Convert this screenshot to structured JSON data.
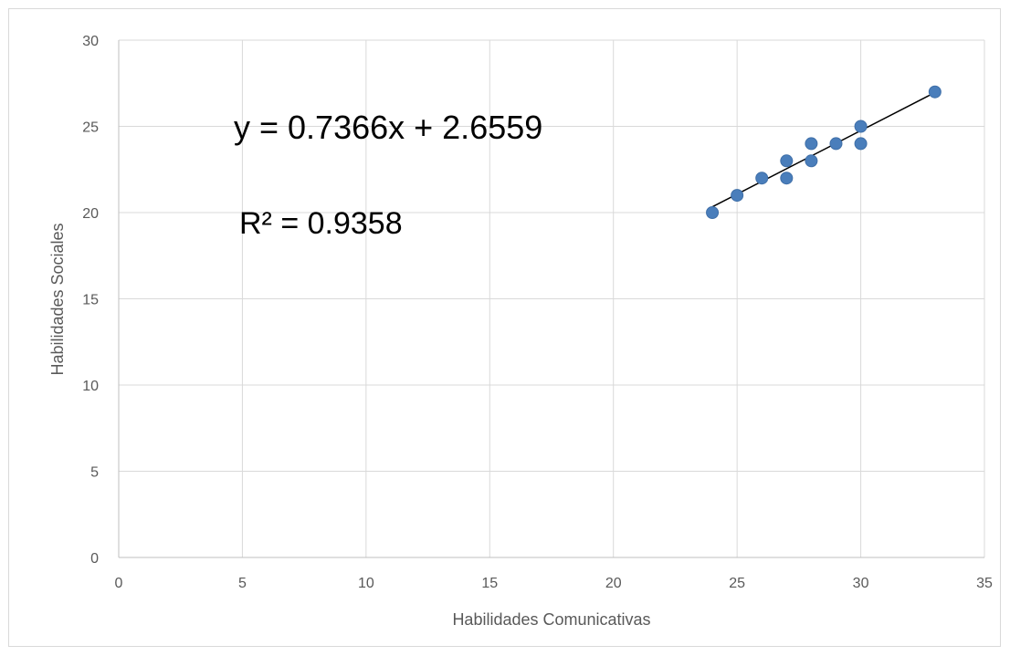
{
  "chart_data": {
    "type": "scatter",
    "title": "",
    "xlabel": "Habilidades Comunicativas",
    "ylabel": "Habilidades Sociales",
    "xlim": [
      0,
      35
    ],
    "ylim": [
      0,
      30
    ],
    "x_ticks": [
      0,
      5,
      10,
      15,
      20,
      25,
      30,
      35
    ],
    "y_ticks": [
      0,
      5,
      10,
      15,
      20,
      25,
      30
    ],
    "grid": true,
    "legend": "none",
    "series": [
      {
        "color": "#4a7ebb",
        "points": [
          {
            "x": 24,
            "y": 20
          },
          {
            "x": 25,
            "y": 21
          },
          {
            "x": 26,
            "y": 22
          },
          {
            "x": 27,
            "y": 22
          },
          {
            "x": 27,
            "y": 23
          },
          {
            "x": 28,
            "y": 23
          },
          {
            "x": 28,
            "y": 24
          },
          {
            "x": 29,
            "y": 24
          },
          {
            "x": 30,
            "y": 24
          },
          {
            "x": 30,
            "y": 25
          },
          {
            "x": 33,
            "y": 27
          }
        ]
      }
    ],
    "trendline": {
      "type": "linear",
      "slope": 0.7366,
      "intercept": 2.6559,
      "x_range": [
        24,
        33
      ],
      "color": "#000000"
    },
    "annotations": {
      "equation": "y = 0.7366x + 2.6559",
      "r_squared": "R² = 0.9358"
    }
  }
}
